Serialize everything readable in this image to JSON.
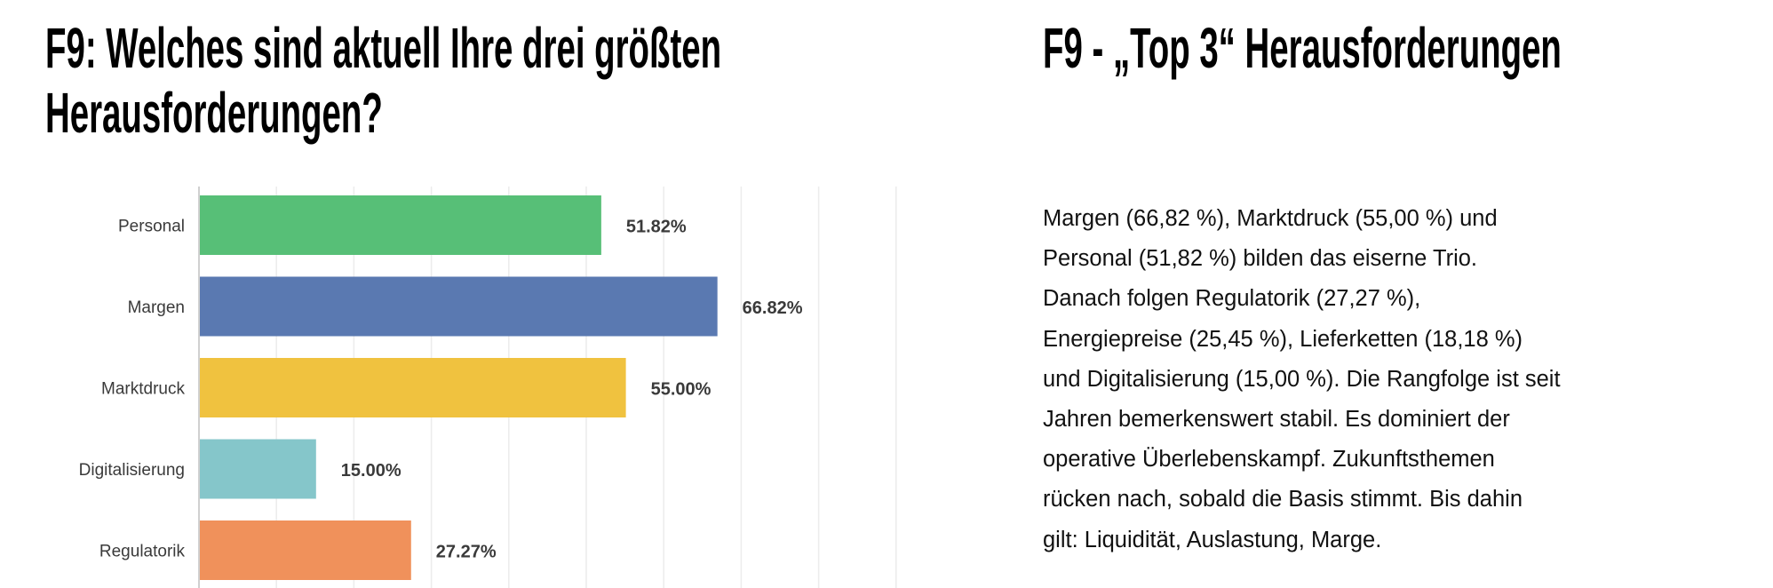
{
  "left_title_lines": [
    "F9: Welches sind aktuell Ihre drei größten",
    "Herausforderungen?"
  ],
  "right_title": "F9 - „Top 3“ Herausforderungen",
  "body_lines": [
    "Margen (66,82 %), Marktdruck (55,00 %) und",
    "Personal (51,82 %) bilden das eiserne Trio.",
    "Danach folgen Regulatorik (27,27 %),",
    "Energiepreise (25,45 %), Lieferketten (18,18 %)",
    "und Digitalisierung (15,00 %). Die Rangfolge ist seit",
    "Jahren bemerkenswert stabil. Es dominiert der",
    "operative Überlebenskampf. Zukunftsthemen",
    "rücken nach, sobald die Basis stimmt. Bis dahin",
    "gilt: Liquidität, Auslastung, Marge."
  ],
  "chart_data": {
    "type": "bar",
    "orientation": "horizontal",
    "categories": [
      "Personal",
      "Margen",
      "Marktdruck",
      "Digitalisierung",
      "Regulatorik"
    ],
    "values": [
      51.82,
      66.82,
      55.0,
      15.0,
      27.27
    ],
    "value_labels": [
      "51.82%",
      "66.82%",
      "55.00%",
      "15.00%",
      "27.27%"
    ],
    "colors": [
      "#57bf77",
      "#5a79b1",
      "#f0c23f",
      "#85c6ca",
      "#f0915b"
    ],
    "xlim": [
      0,
      90
    ],
    "grid": true,
    "grid_step": 10,
    "label_color": "#3a3a3a"
  }
}
